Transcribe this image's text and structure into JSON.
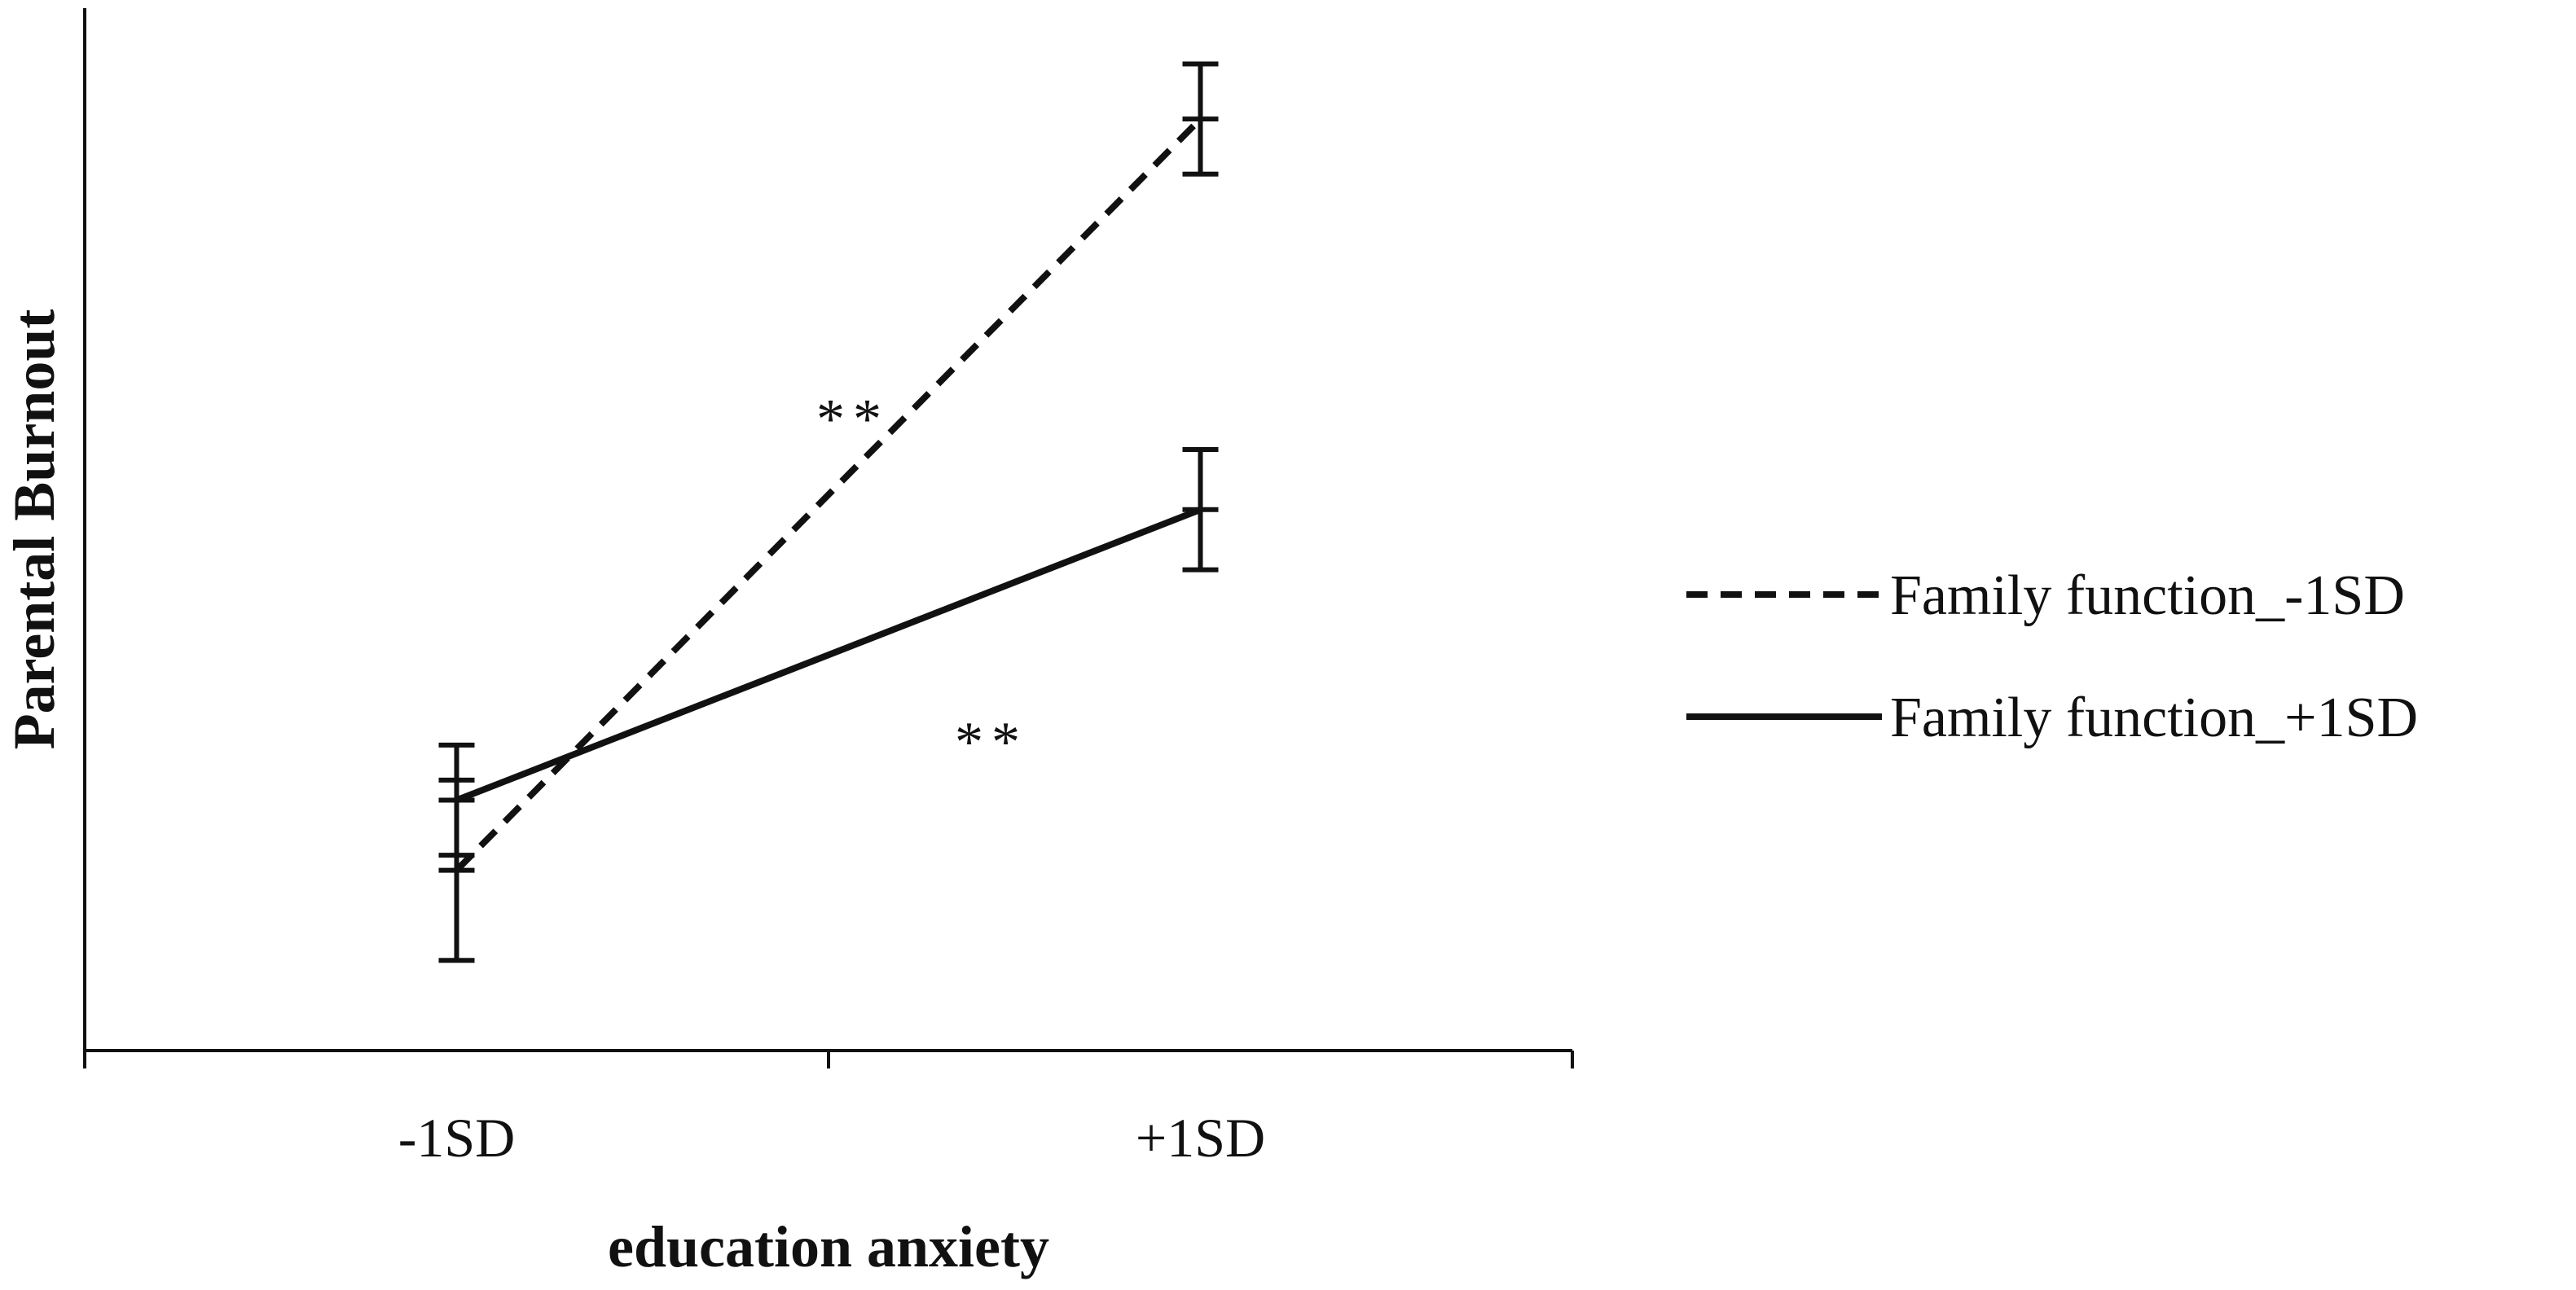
{
  "chart_data": {
    "type": "line",
    "title": "",
    "xlabel": "education anxiety",
    "ylabel": "Parental Burnout",
    "categories": [
      "-1SD",
      "+1SD"
    ],
    "ylim": [
      0,
      10
    ],
    "grid": false,
    "legend_position": "right",
    "series": [
      {
        "name": "Family function_-1SD",
        "style": "dashed",
        "color": "#111111",
        "values": [
          1.8,
          9.3
        ],
        "error": [
          0.9,
          0.55
        ]
      },
      {
        "name": "Family function_+1SD",
        "style": "solid",
        "color": "#111111",
        "values": [
          2.5,
          5.4
        ],
        "error": [
          0.55,
          0.6
        ]
      }
    ],
    "annotations": [
      {
        "text": "**",
        "series": 0
      },
      {
        "text": "**",
        "series": 1
      }
    ]
  }
}
